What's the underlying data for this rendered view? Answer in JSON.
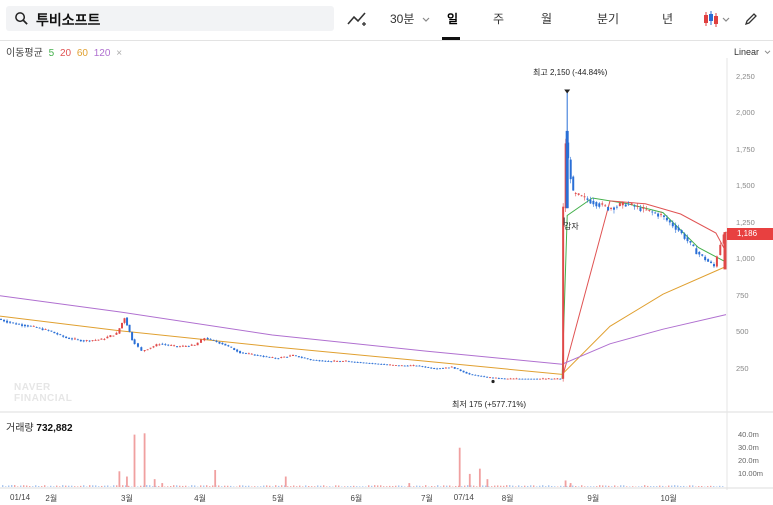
{
  "header": {
    "stock_name": "투비소프트",
    "interval_label": "30분",
    "tabs": [
      "일",
      "주",
      "월",
      "분기",
      "년"
    ],
    "active_tab": "일",
    "icons": [
      "search-icon",
      "draw-line-icon",
      "chevron-down-icon",
      "candle-type-icon",
      "pencil-icon"
    ]
  },
  "indicators": {
    "label": "이동평균",
    "periods": [
      "5",
      "20",
      "60",
      "120"
    ],
    "colors": [
      "#43b04b",
      "#e05353",
      "#e0a030",
      "#b070d0"
    ]
  },
  "scale_label": "Linear",
  "watermark": [
    "NAVER",
    "FINANCIAL"
  ],
  "chart_data": {
    "type": "candlestick",
    "x_ticks": [
      "01/14",
      "2월",
      "3월",
      "4월",
      "5월",
      "6월",
      "7월",
      "07/14",
      "8월",
      "9월",
      "10월"
    ],
    "y_ticks": [
      2250,
      2000,
      1750,
      1500,
      1250,
      1000,
      750,
      500,
      250
    ],
    "ylim": [
      0,
      2300
    ],
    "current_price": "1,186",
    "annotations": {
      "high": "최고 2,150 (-44.84%)",
      "low": "최저 175 (+577.71%)",
      "event": "감자"
    },
    "price_points": [
      [
        "01/14",
        590
      ],
      [
        "01/20",
        560
      ],
      [
        "01/27",
        540
      ],
      [
        "02/03",
        510
      ],
      [
        "02/10",
        460
      ],
      [
        "02/17",
        440
      ],
      [
        "02/24",
        450
      ],
      [
        "03/01",
        490
      ],
      [
        "03/04",
        600
      ],
      [
        "03/07",
        450
      ],
      [
        "03/11",
        370
      ],
      [
        "03/18",
        420
      ],
      [
        "03/25",
        400
      ],
      [
        "04/01",
        410
      ],
      [
        "04/05",
        460
      ],
      [
        "04/12",
        420
      ],
      [
        "04/19",
        360
      ],
      [
        "04/26",
        340
      ],
      [
        "05/03",
        320
      ],
      [
        "05/10",
        340
      ],
      [
        "05/17",
        310
      ],
      [
        "05/24",
        300
      ],
      [
        "05/31",
        300
      ],
      [
        "06/07",
        290
      ],
      [
        "06/14",
        280
      ],
      [
        "06/21",
        270
      ],
      [
        "06/28",
        270
      ],
      [
        "07/05",
        250
      ],
      [
        "07/12",
        260
      ],
      [
        "07/19",
        210
      ],
      [
        "07/26",
        190
      ],
      [
        "08/02",
        180
      ],
      [
        "08/09",
        180
      ],
      [
        "08/16",
        180
      ],
      [
        "08/24",
        180
      ],
      [
        "08/25",
        1350
      ],
      [
        "08/26",
        1800
      ],
      [
        "08/29",
        1450
      ],
      [
        "09/05",
        1400
      ],
      [
        "09/12",
        1350
      ],
      [
        "09/19",
        1380
      ],
      [
        "09/26",
        1340
      ],
      [
        "10/03",
        1300
      ],
      [
        "10/10",
        1200
      ],
      [
        "10/17",
        1050
      ],
      [
        "10/24",
        950
      ],
      [
        "10/28",
        1186
      ]
    ],
    "ma_lines": {
      "5": [
        [
          "08/24",
          180
        ],
        [
          "08/26",
          1300
        ],
        [
          "09/05",
          1420
        ],
        [
          "09/19",
          1380
        ],
        [
          "10/03",
          1320
        ],
        [
          "10/17",
          1080
        ],
        [
          "10/28",
          980
        ]
      ],
      "20": [
        [
          "08/24",
          180
        ],
        [
          "09/12",
          1400
        ],
        [
          "09/26",
          1380
        ],
        [
          "10/10",
          1310
        ],
        [
          "10/24",
          1180
        ],
        [
          "10/28",
          1050
        ]
      ],
      "60": [
        [
          "01/14",
          610
        ],
        [
          "03/01",
          510
        ],
        [
          "05/01",
          400
        ],
        [
          "07/01",
          300
        ],
        [
          "08/24",
          210
        ],
        [
          "09/12",
          540
        ],
        [
          "10/03",
          760
        ],
        [
          "10/28",
          950
        ]
      ],
      "120": [
        [
          "01/14",
          750
        ],
        [
          "03/01",
          640
        ],
        [
          "05/01",
          480
        ],
        [
          "07/01",
          370
        ],
        [
          "08/24",
          280
        ],
        [
          "09/12",
          420
        ],
        [
          "10/03",
          520
        ],
        [
          "10/28",
          620
        ]
      ]
    },
    "volume": {
      "label": "거래량",
      "latest": "732,882",
      "y_ticks": [
        "40.0m",
        "30.0m",
        "20.0m",
        "10.00m"
      ],
      "ymax": 42,
      "spikes": [
        [
          "03/01",
          12
        ],
        [
          "03/04",
          8
        ],
        [
          "03/07",
          40
        ],
        [
          "03/11",
          41
        ],
        [
          "03/15",
          6
        ],
        [
          "03/18",
          3
        ],
        [
          "04/08",
          13
        ],
        [
          "05/06",
          8
        ],
        [
          "06/24",
          3
        ],
        [
          "07/14",
          30
        ],
        [
          "07/18",
          10
        ],
        [
          "07/22",
          14
        ],
        [
          "07/25",
          6
        ],
        [
          "08/25",
          5
        ],
        [
          "08/27",
          3
        ]
      ]
    }
  }
}
